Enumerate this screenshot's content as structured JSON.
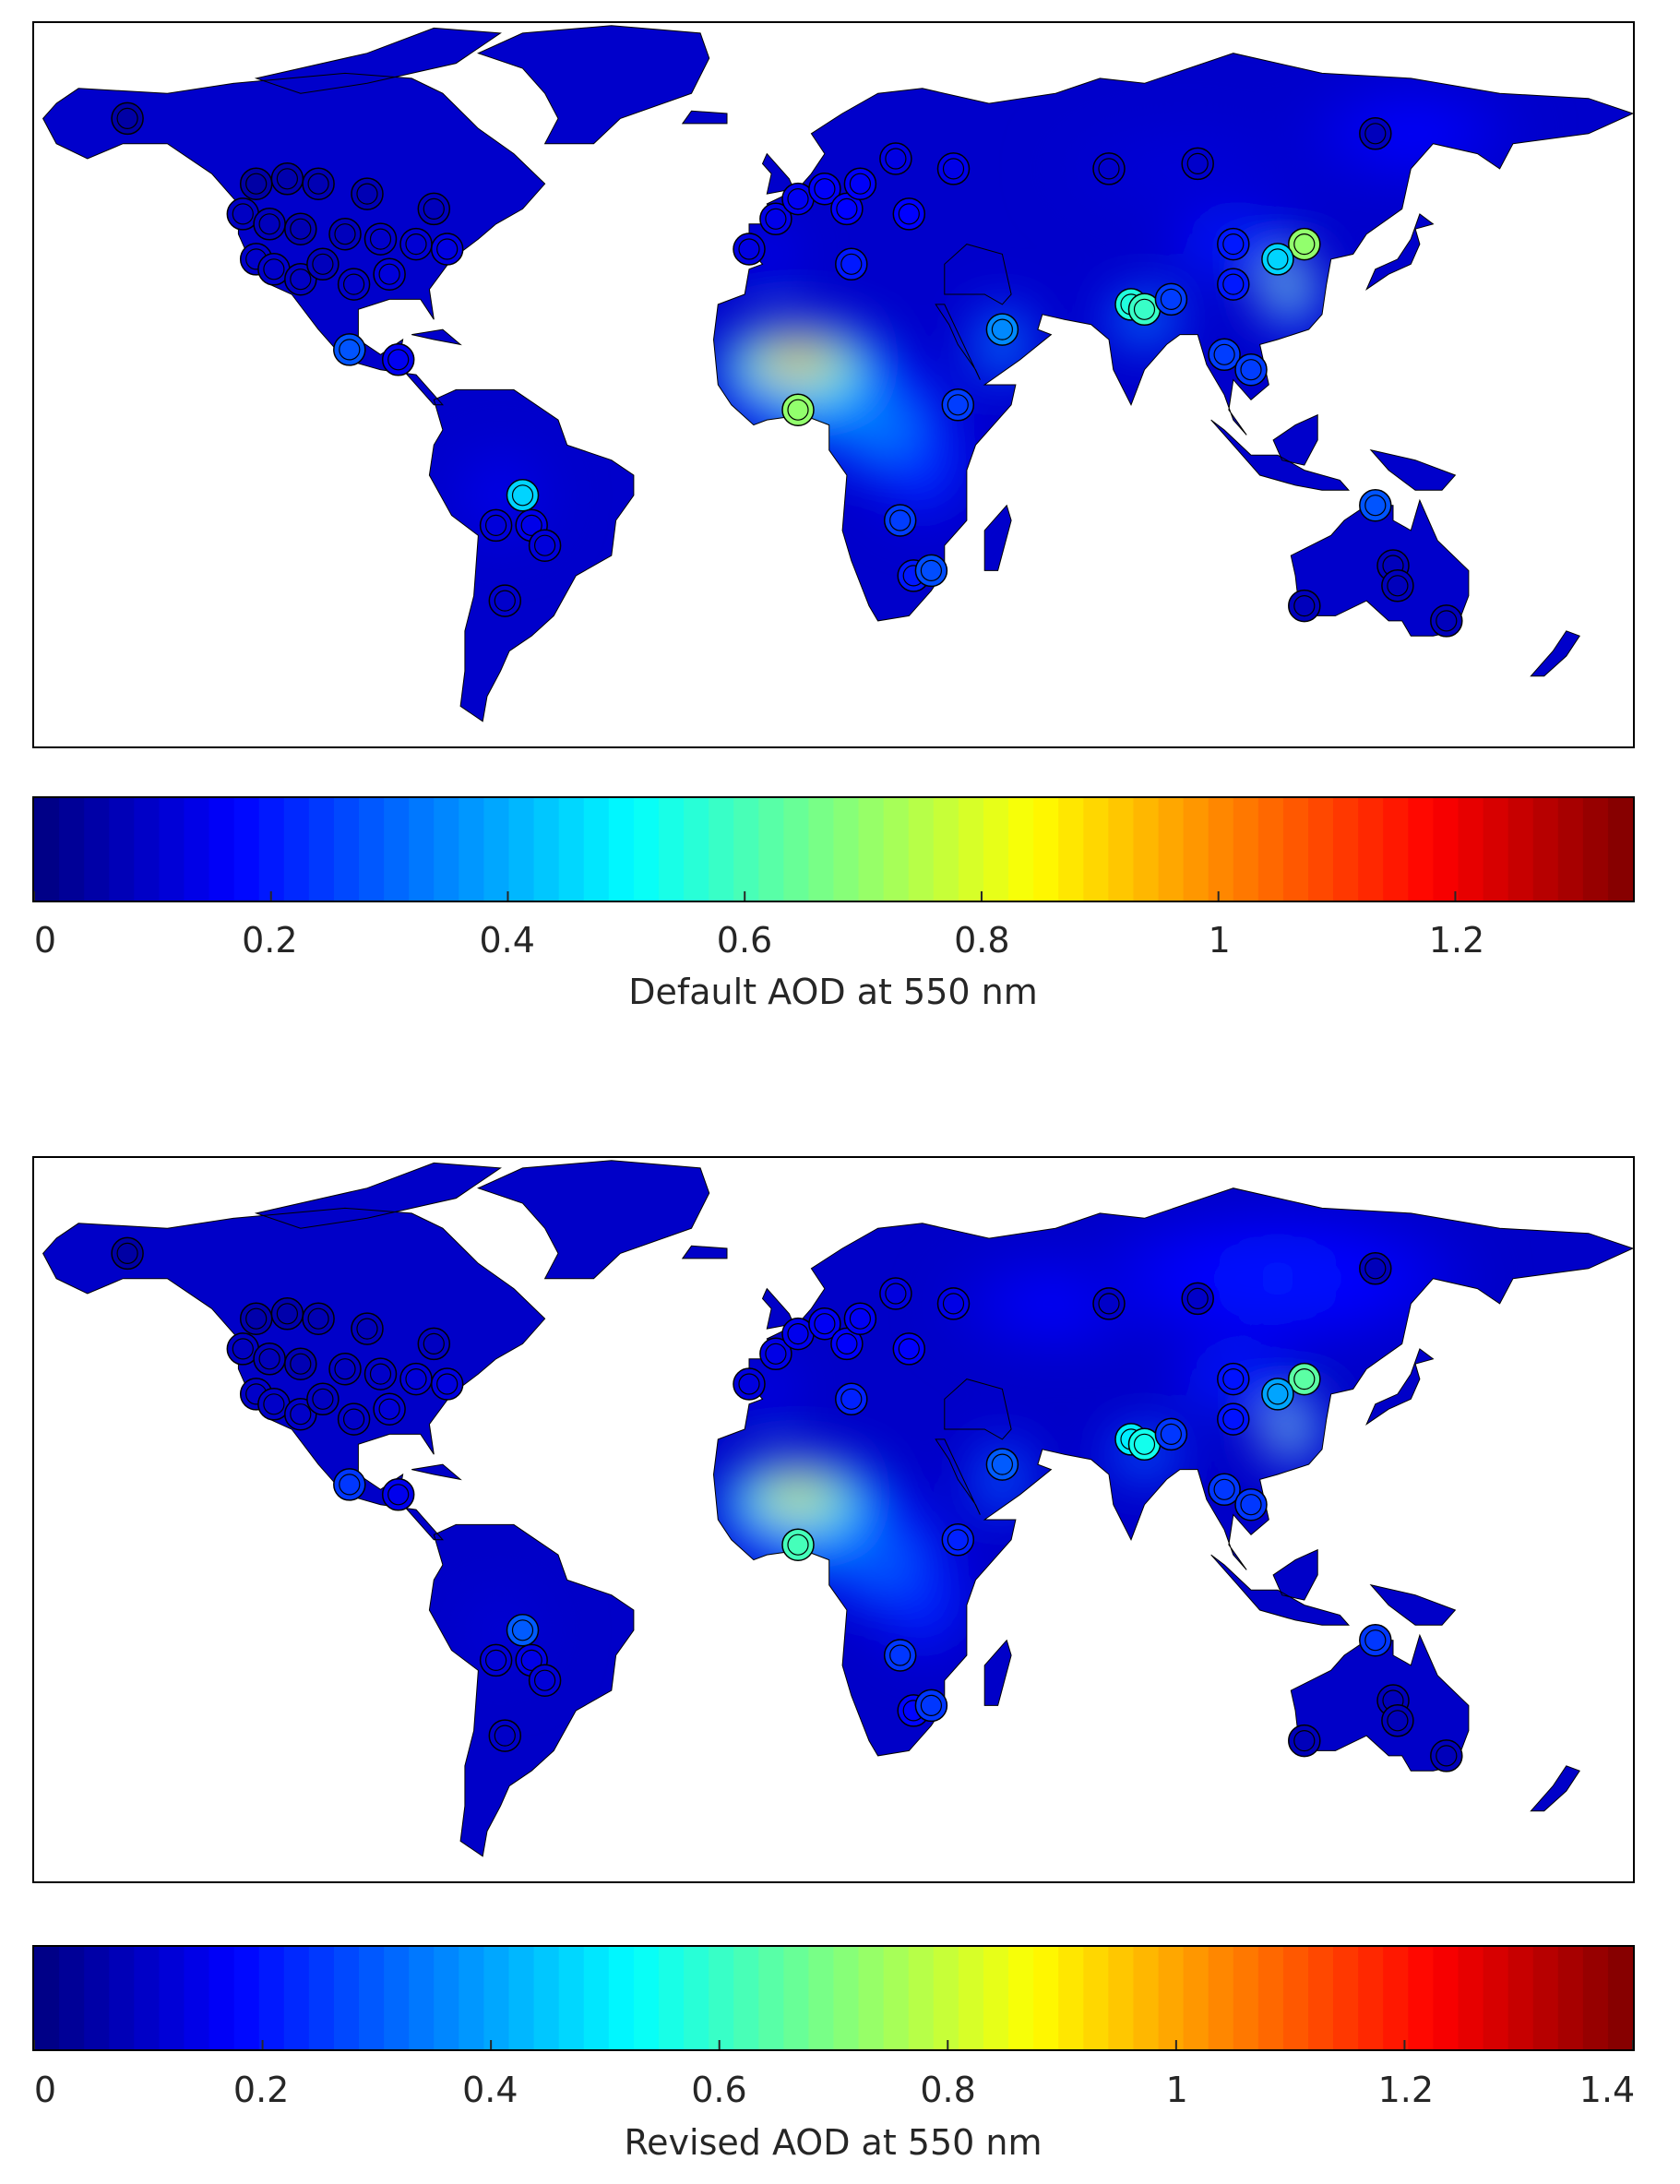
{
  "panels": [
    {
      "colorbar_label": "Default AOD at 550 nm",
      "ticks": [
        "0",
        "0.2",
        "0.4",
        "0.6",
        "0.8",
        "1",
        "1.2"
      ],
      "tick_values": [
        0,
        0.2,
        0.4,
        0.6,
        0.8,
        1.0,
        1.2
      ],
      "cmax": 1.35
    },
    {
      "colorbar_label": "Revised AOD at 550 nm",
      "ticks": [
        "0",
        "0.2",
        "0.4",
        "0.6",
        "0.8",
        "1",
        "1.2",
        "1.4"
      ],
      "tick_values": [
        0,
        0.2,
        0.4,
        0.6,
        0.8,
        1.0,
        1.2,
        1.4
      ],
      "cmax": 1.4
    }
  ],
  "colormap": "jet",
  "colors": {
    "ocean": "#ffffff",
    "background_land": "#1a33e0",
    "frame": "#000000"
  },
  "sites": [
    {
      "lon": -149,
      "lat": 65,
      "aod": [
        0.05,
        0.05
      ]
    },
    {
      "lon": -120,
      "lat": 52,
      "aod": [
        0.05,
        0.06
      ]
    },
    {
      "lon": -113,
      "lat": 53,
      "aod": [
        0.06,
        0.06
      ]
    },
    {
      "lon": -106,
      "lat": 52,
      "aod": [
        0.07,
        0.07
      ]
    },
    {
      "lon": -95,
      "lat": 50,
      "aod": [
        0.07,
        0.08
      ]
    },
    {
      "lon": -80,
      "lat": 47,
      "aod": [
        0.08,
        0.09
      ]
    },
    {
      "lon": -123,
      "lat": 46,
      "aod": [
        0.09,
        0.09
      ]
    },
    {
      "lon": -117,
      "lat": 44,
      "aod": [
        0.08,
        0.08
      ]
    },
    {
      "lon": -110,
      "lat": 43,
      "aod": [
        0.07,
        0.07
      ]
    },
    {
      "lon": -100,
      "lat": 42,
      "aod": [
        0.08,
        0.09
      ]
    },
    {
      "lon": -92,
      "lat": 41,
      "aod": [
        0.1,
        0.1
      ]
    },
    {
      "lon": -84,
      "lat": 40,
      "aod": [
        0.11,
        0.12
      ]
    },
    {
      "lon": -77,
      "lat": 39,
      "aod": [
        0.13,
        0.13
      ]
    },
    {
      "lon": -120,
      "lat": 37,
      "aod": [
        0.1,
        0.1
      ]
    },
    {
      "lon": -116,
      "lat": 35,
      "aod": [
        0.1,
        0.1
      ]
    },
    {
      "lon": -110,
      "lat": 33,
      "aod": [
        0.09,
        0.1
      ]
    },
    {
      "lon": -105,
      "lat": 36,
      "aod": [
        0.08,
        0.09
      ]
    },
    {
      "lon": -98,
      "lat": 32,
      "aod": [
        0.1,
        0.1
      ]
    },
    {
      "lon": -90,
      "lat": 34,
      "aod": [
        0.12,
        0.12
      ]
    },
    {
      "lon": -99,
      "lat": 19,
      "aod": [
        0.28,
        0.25
      ]
    },
    {
      "lon": -88,
      "lat": 17,
      "aod": [
        0.15,
        0.15
      ]
    },
    {
      "lon": -60,
      "lat": -10,
      "aod": [
        0.45,
        0.3
      ]
    },
    {
      "lon": -66,
      "lat": -16,
      "aod": [
        0.12,
        0.12
      ]
    },
    {
      "lon": -58,
      "lat": -16,
      "aod": [
        0.14,
        0.14
      ]
    },
    {
      "lon": -55,
      "lat": -20,
      "aod": [
        0.12,
        0.12
      ]
    },
    {
      "lon": -64,
      "lat": -31,
      "aod": [
        0.1,
        0.1
      ]
    },
    {
      "lon": -9,
      "lat": 39,
      "aod": [
        0.13,
        0.13
      ]
    },
    {
      "lon": -3,
      "lat": 45,
      "aod": [
        0.14,
        0.14
      ]
    },
    {
      "lon": 2,
      "lat": 49,
      "aod": [
        0.15,
        0.15
      ]
    },
    {
      "lon": 8,
      "lat": 51,
      "aod": [
        0.16,
        0.16
      ]
    },
    {
      "lon": 13,
      "lat": 47,
      "aod": [
        0.17,
        0.17
      ]
    },
    {
      "lon": 16,
      "lat": 52,
      "aod": [
        0.16,
        0.16
      ]
    },
    {
      "lon": 24,
      "lat": 57,
      "aod": [
        0.13,
        0.13
      ]
    },
    {
      "lon": 37,
      "lat": 55,
      "aod": [
        0.14,
        0.14
      ]
    },
    {
      "lon": 27,
      "lat": 46,
      "aod": [
        0.17,
        0.17
      ]
    },
    {
      "lon": 14,
      "lat": 36,
      "aod": [
        0.2,
        0.22
      ]
    },
    {
      "lon": 2,
      "lat": 7,
      "aod": [
        0.7,
        0.62
      ]
    },
    {
      "lon": 38,
      "lat": 8,
      "aod": [
        0.25,
        0.22
      ]
    },
    {
      "lon": 25,
      "lat": -15,
      "aod": [
        0.25,
        0.25
      ]
    },
    {
      "lon": 28,
      "lat": -26,
      "aod": [
        0.2,
        0.18
      ]
    },
    {
      "lon": 32,
      "lat": -25,
      "aod": [
        0.27,
        0.25
      ]
    },
    {
      "lon": 48,
      "lat": 23,
      "aod": [
        0.35,
        0.3
      ]
    },
    {
      "lon": 77,
      "lat": 28,
      "aod": [
        0.55,
        0.5
      ]
    },
    {
      "lon": 80,
      "lat": 27,
      "aod": [
        0.58,
        0.55
      ]
    },
    {
      "lon": 86,
      "lat": 29,
      "aod": [
        0.25,
        0.25
      ]
    },
    {
      "lon": 100,
      "lat": 40,
      "aod": [
        0.2,
        0.2
      ]
    },
    {
      "lon": 100,
      "lat": 32,
      "aod": [
        0.2,
        0.2
      ]
    },
    {
      "lon": 98,
      "lat": 18,
      "aod": [
        0.25,
        0.25
      ]
    },
    {
      "lon": 104,
      "lat": 15,
      "aod": [
        0.25,
        0.25
      ]
    },
    {
      "lon": 116,
      "lat": 40,
      "aod": [
        0.7,
        0.65
      ]
    },
    {
      "lon": 110,
      "lat": 37,
      "aod": [
        0.45,
        0.4
      ]
    },
    {
      "lon": 72,
      "lat": 55,
      "aod": [
        0.1,
        0.1
      ]
    },
    {
      "lon": 92,
      "lat": 56,
      "aod": [
        0.1,
        0.1
      ]
    },
    {
      "lon": 132,
      "lat": 62,
      "aod": [
        0.08,
        0.08
      ]
    },
    {
      "lon": 132,
      "lat": -12,
      "aod": [
        0.28,
        0.25
      ]
    },
    {
      "lon": 116,
      "lat": -32,
      "aod": [
        0.08,
        0.08
      ]
    },
    {
      "lon": 136,
      "lat": -24,
      "aod": [
        0.08,
        0.08
      ]
    },
    {
      "lon": 137,
      "lat": -28,
      "aod": [
        0.08,
        0.08
      ]
    },
    {
      "lon": 148,
      "lat": -35,
      "aod": [
        0.08,
        0.08
      ]
    }
  ]
}
